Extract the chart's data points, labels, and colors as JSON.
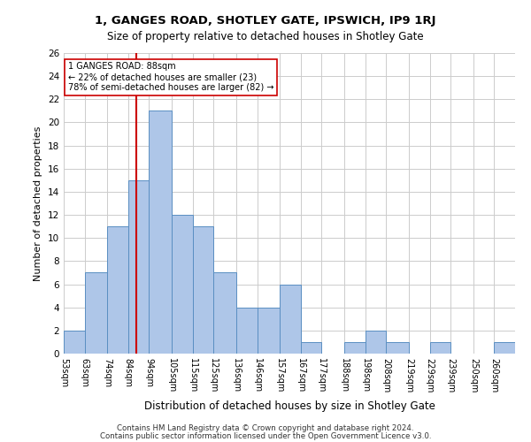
{
  "title1": "1, GANGES ROAD, SHOTLEY GATE, IPSWICH, IP9 1RJ",
  "title2": "Size of property relative to detached houses in Shotley Gate",
  "xlabel": "Distribution of detached houses by size in Shotley Gate",
  "ylabel": "Number of detached properties",
  "footer1": "Contains HM Land Registry data © Crown copyright and database right 2024.",
  "footer2": "Contains public sector information licensed under the Open Government Licence v3.0.",
  "bin_labels": [
    "53sqm",
    "63sqm",
    "74sqm",
    "84sqm",
    "94sqm",
    "105sqm",
    "115sqm",
    "125sqm",
    "136sqm",
    "146sqm",
    "157sqm",
    "167sqm",
    "177sqm",
    "188sqm",
    "198sqm",
    "208sqm",
    "219sqm",
    "229sqm",
    "239sqm",
    "250sqm",
    "260sqm"
  ],
  "bin_edges": [
    53,
    63,
    74,
    84,
    94,
    105,
    115,
    125,
    136,
    146,
    157,
    167,
    177,
    188,
    198,
    208,
    219,
    229,
    239,
    250,
    260,
    270
  ],
  "values": [
    2,
    7,
    11,
    15,
    21,
    12,
    11,
    7,
    4,
    4,
    6,
    1,
    0,
    1,
    2,
    1,
    0,
    1,
    0,
    0,
    1
  ],
  "bar_color": "#aec6e8",
  "bar_edge_color": "#5a8fc2",
  "grid_color": "#cccccc",
  "property_line_x": 88,
  "property_line_color": "#cc0000",
  "annotation_text": "1 GANGES ROAD: 88sqm\n← 22% of detached houses are smaller (23)\n78% of semi-detached houses are larger (82) →",
  "annotation_box_color": "#ffffff",
  "annotation_box_edge": "#cc0000",
  "ylim": [
    0,
    26
  ],
  "yticks": [
    0,
    2,
    4,
    6,
    8,
    10,
    12,
    14,
    16,
    18,
    20,
    22,
    24,
    26
  ],
  "background_color": "#ffffff"
}
